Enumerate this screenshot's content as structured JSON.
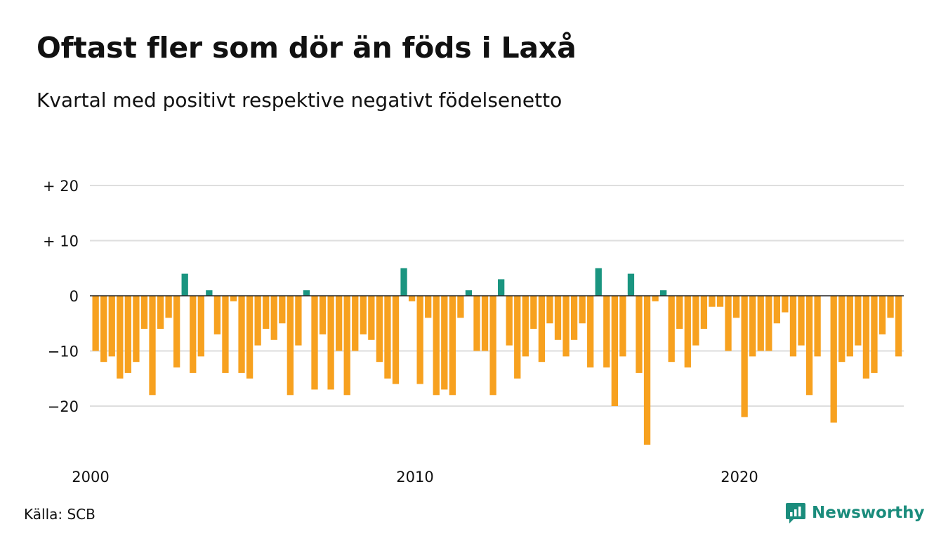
{
  "title": "Oftast fler som dör än föds i Laxå",
  "subtitle": "Kvartal med positivt respektive negativt födelsenetto",
  "source": "Källa: SCB",
  "logo": {
    "text": "Newsworthy",
    "icon": "newsworthy-logo-icon",
    "color": "#1a8c7c"
  },
  "chart_data": {
    "type": "bar",
    "x_start_year": 2000,
    "x_step": "quarter",
    "xticks": [
      {
        "year": 2000,
        "label": "2000"
      },
      {
        "year": 2010,
        "label": "2010"
      },
      {
        "year": 2020,
        "label": "2020"
      }
    ],
    "yticks": [
      {
        "value": 20,
        "label": "+ 20"
      },
      {
        "value": 10,
        "label": "+ 10"
      },
      {
        "value": 0,
        "label": "0"
      },
      {
        "value": -10,
        "label": "−10"
      },
      {
        "value": -20,
        "label": "−20"
      }
    ],
    "ylim": [
      -27,
      20
    ],
    "grid": true,
    "positive_color": "#1a9580",
    "negative_color": "#f7a11f",
    "values": [
      -10,
      -12,
      -11,
      -15,
      -14,
      -12,
      -6,
      -18,
      -6,
      -4,
      -13,
      4,
      -14,
      -11,
      1,
      -7,
      -14,
      -1,
      -14,
      -15,
      -9,
      -6,
      -8,
      -5,
      -18,
      -9,
      1,
      -17,
      -7,
      -17,
      -10,
      -18,
      -10,
      -7,
      -8,
      -12,
      -15,
      -16,
      5,
      -1,
      -16,
      -4,
      -18,
      -17,
      -18,
      -4,
      1,
      -10,
      -10,
      -18,
      3,
      -9,
      -15,
      -11,
      -6,
      -12,
      -5,
      -8,
      -11,
      -8,
      -5,
      -13,
      5,
      -13,
      -20,
      -11,
      4,
      -14,
      -27,
      -1,
      1,
      -12,
      -6,
      -13,
      -9,
      -6,
      -2,
      -2,
      -10,
      -4,
      -22,
      -11,
      -10,
      -10,
      -5,
      -3,
      -11,
      -9,
      -18,
      -11,
      0,
      -23,
      -12,
      -11,
      -9,
      -15,
      -14,
      -7,
      -4,
      -11
    ]
  }
}
